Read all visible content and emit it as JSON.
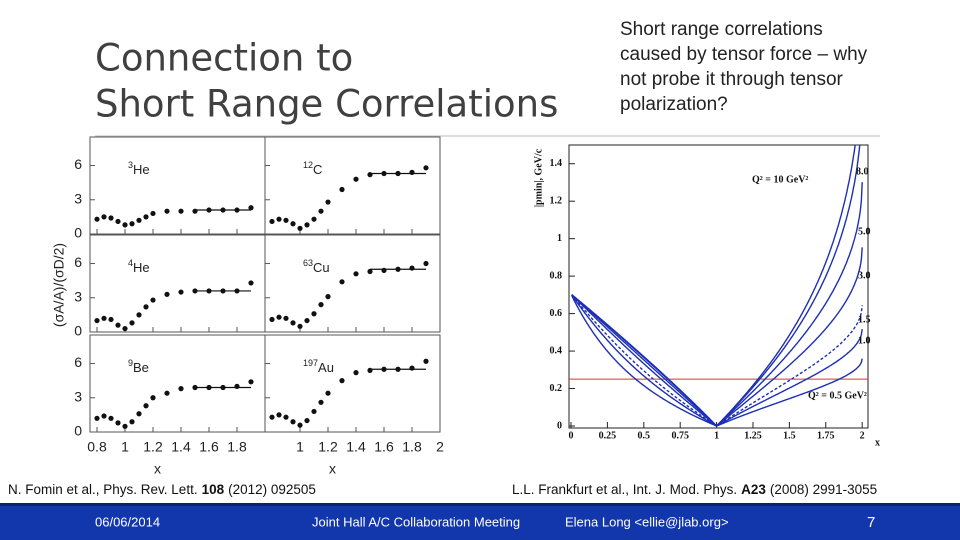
{
  "slide": {
    "title": [
      "Connection to",
      "Short Range Correlations"
    ],
    "note": [
      "Short range correlations",
      "caused by tensor force – why",
      "not probe it through tensor",
      "polarization?"
    ],
    "figure_left": {
      "ylabel": "(σA/A)/(σD/2)",
      "xlabel": "x",
      "xlim": [
        0.75,
        2.0
      ],
      "ylim": [
        0,
        8.5
      ],
      "yticks": [
        0,
        3,
        6
      ],
      "columns": [
        {
          "xticks": [
            0.8,
            1,
            1.2,
            1.4,
            1.6,
            1.8
          ]
        },
        {
          "xticks": [
            1,
            1.2,
            1.4,
            1.6,
            1.8,
            2
          ]
        }
      ],
      "x": [
        0.8,
        0.85,
        0.9,
        0.95,
        1.0,
        1.05,
        1.1,
        1.15,
        1.2,
        1.3,
        1.4,
        1.5,
        1.6,
        1.7,
        1.8,
        1.9
      ],
      "plateau_x": [
        1.5,
        1.9
      ],
      "panels": [
        {
          "mass": "3",
          "element": "He",
          "y": [
            1.3,
            1.5,
            1.4,
            1.1,
            0.8,
            0.9,
            1.2,
            1.5,
            1.8,
            2.0,
            2.0,
            2.0,
            2.1,
            2.1,
            2.1,
            2.3
          ],
          "plateau": 2.1
        },
        {
          "mass": "12",
          "element": "C",
          "y": [
            1.1,
            1.3,
            1.2,
            0.9,
            0.5,
            0.8,
            1.3,
            2.0,
            2.8,
            3.9,
            4.8,
            5.2,
            5.3,
            5.3,
            5.4,
            5.8
          ],
          "plateau": 5.3
        },
        {
          "mass": "4",
          "element": "He",
          "y": [
            1.0,
            1.2,
            1.1,
            0.6,
            0.3,
            0.8,
            1.5,
            2.2,
            2.8,
            3.3,
            3.5,
            3.6,
            3.6,
            3.6,
            3.6,
            4.3
          ],
          "plateau": 3.6
        },
        {
          "mass": "63",
          "element": "Cu",
          "y": [
            1.1,
            1.3,
            1.2,
            0.8,
            0.5,
            1.0,
            1.6,
            2.4,
            3.1,
            4.4,
            5.1,
            5.3,
            5.4,
            5.5,
            5.6,
            6.0
          ],
          "plateau": 5.5
        },
        {
          "mass": "9",
          "element": "Be",
          "y": [
            1.2,
            1.4,
            1.2,
            0.8,
            0.5,
            0.9,
            1.6,
            2.3,
            3.0,
            3.4,
            3.8,
            3.9,
            3.9,
            3.9,
            4.0,
            4.4
          ],
          "plateau": 3.9
        },
        {
          "mass": "197",
          "element": "Au",
          "y": [
            1.3,
            1.5,
            1.3,
            0.9,
            0.6,
            1.0,
            1.8,
            2.6,
            3.4,
            4.5,
            5.2,
            5.4,
            5.5,
            5.5,
            5.6,
            6.2
          ],
          "plateau": 5.5
        }
      ],
      "citation": {
        "text": "N. Fomin et al., Phys. Rev. Lett.",
        "volume": "108",
        "rest": "(2012) 092505"
      }
    },
    "figure_right": {
      "ylabel": "|pmin|, GeV/c",
      "xlabel": "x",
      "xlim": [
        0,
        2.04
      ],
      "ylim": [
        0,
        1.5
      ],
      "xticks": [
        0,
        0.25,
        0.5,
        0.75,
        1,
        1.25,
        1.5,
        1.75,
        2
      ],
      "yticks": [
        0,
        0.2,
        0.4,
        0.6,
        0.8,
        1,
        1.2,
        1.4
      ],
      "reference_line": 0.25,
      "curves": [
        {
          "q2": 10,
          "label": "Q² = 10 GeV²"
        },
        {
          "q2": 8,
          "label": "8.0"
        },
        {
          "q2": 5,
          "label": "5.0"
        },
        {
          "q2": 3,
          "label": "3.0"
        },
        {
          "q2": 1.5,
          "label": "1.5"
        },
        {
          "q2": 1,
          "label": "1.0"
        },
        {
          "q2": 0.5,
          "label": "Q² = 0.5 GeV²"
        }
      ],
      "citation": {
        "text": "L.L. Frankfurt et al., Int. J. Mod. Phys.",
        "volume": "A23",
        "rest": "(2008) 2991-3055"
      }
    },
    "footer": {
      "date": "06/06/2014",
      "event": "Joint Hall A/C Collaboration Meeting",
      "author": "Elena Long <ellie@jlab.org>",
      "page": "7"
    }
  }
}
